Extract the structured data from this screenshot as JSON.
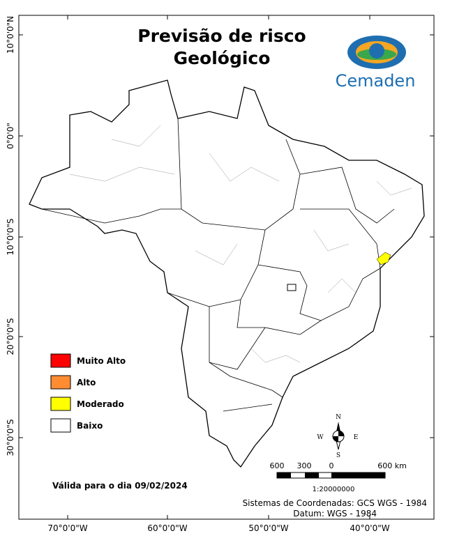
{
  "title": [
    "Previsão de risco",
    "Geológico"
  ],
  "logo": "Cemaden",
  "legend": [
    {
      "label": "Muito Alto",
      "color": "#ff0000"
    },
    {
      "label": "Alto",
      "color": "#ff8c33"
    },
    {
      "label": "Moderado",
      "color": "#ffff00"
    },
    {
      "label": "Baixo",
      "color": "#ffffff"
    }
  ],
  "valid_date": "Válida para o dia 09/02/2024",
  "scale": {
    "labels": [
      "600",
      "300",
      "0",
      "600 km"
    ],
    "ratio": "1:20000000"
  },
  "compass": {
    "n": "N",
    "s": "S",
    "e": "E",
    "w": "W"
  },
  "coordinates": [
    "Sistemas de Coordenadas: GCS WGS - 1984",
    "Datum: WGS - 1984"
  ],
  "lat_labels": [
    "10°0'0\"N",
    "0°0'0\"",
    "10°0'0\"S",
    "20°0'0\"S",
    "30°0'0\"S"
  ],
  "lon_labels": [
    "70°0'0\"W",
    "60°0'0\"W",
    "50°0'0\"W",
    "40°0'0\"W"
  ]
}
